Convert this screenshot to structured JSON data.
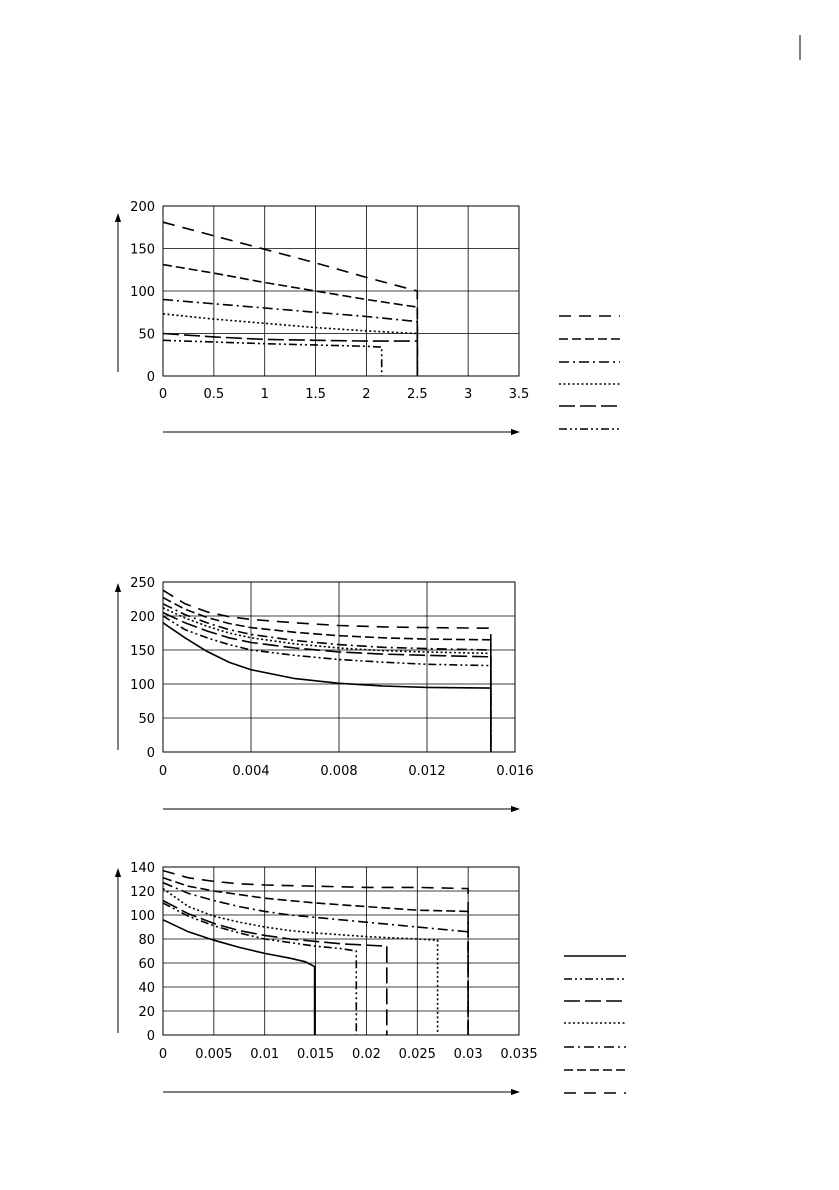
{
  "chart_data": [
    {
      "type": "line",
      "title": "",
      "xlabel": "",
      "ylabel": "",
      "xlim": [
        0,
        3.5
      ],
      "ylim": [
        0,
        200
      ],
      "xticks": [
        "0",
        "0.5",
        "1",
        "1.5",
        "2",
        "2.5",
        "3",
        "3.5"
      ],
      "yticks": [
        "0",
        "50",
        "100",
        "150",
        "200"
      ],
      "grid": true,
      "legend": "right",
      "series": [
        {
          "dash": "dashdotdot",
          "points": [
            [
              0,
              42
            ],
            [
              1,
              38
            ],
            [
              2,
              35
            ],
            [
              2.15,
              34
            ],
            [
              2.15,
              0
            ]
          ]
        },
        {
          "dash": "longdash",
          "points": [
            [
              0,
              50
            ],
            [
              0.5,
              46
            ],
            [
              1,
              43
            ],
            [
              1.5,
              42
            ],
            [
              2,
              41
            ],
            [
              2.5,
              41
            ],
            [
              2.5,
              0
            ]
          ]
        },
        {
          "dash": "dotted",
          "points": [
            [
              0,
              73
            ],
            [
              0.5,
              67
            ],
            [
              1,
              62
            ],
            [
              1.5,
              57
            ],
            [
              2,
              53
            ],
            [
              2.5,
              50
            ],
            [
              2.5,
              0
            ]
          ]
        },
        {
          "dash": "dashdot",
          "points": [
            [
              0,
              90
            ],
            [
              0.5,
              85
            ],
            [
              1,
              80
            ],
            [
              1.5,
              75
            ],
            [
              2,
              70
            ],
            [
              2.5,
              64
            ],
            [
              2.5,
              0
            ]
          ]
        },
        {
          "dash": "dash",
          "points": [
            [
              0,
              131
            ],
            [
              0.5,
              121
            ],
            [
              1,
              110
            ],
            [
              1.5,
              100
            ],
            [
              2,
              90
            ],
            [
              2.5,
              81
            ],
            [
              2.5,
              0
            ]
          ]
        },
        {
          "dash": "longspacedash",
          "points": [
            [
              0,
              181
            ],
            [
              0.5,
              165
            ],
            [
              1,
              149
            ],
            [
              1.5,
              133
            ],
            [
              2,
              116
            ],
            [
              2.5,
              100
            ],
            [
              2.5,
              0
            ]
          ]
        }
      ]
    },
    {
      "type": "line",
      "title": "",
      "xlabel": "",
      "ylabel": "",
      "xlim": [
        0,
        0.016
      ],
      "ylim": [
        0,
        250
      ],
      "xticks": [
        "0",
        "0.004",
        "0.008",
        "0.012",
        "0.016"
      ],
      "yticks": [
        "0",
        "50",
        "100",
        "150",
        "200",
        "250"
      ],
      "grid": true,
      "legend": "none",
      "series": [
        {
          "dash": "solid",
          "points": [
            [
              0,
              190
            ],
            [
              0.001,
              168
            ],
            [
              0.002,
              148
            ],
            [
              0.003,
              132
            ],
            [
              0.004,
              121
            ],
            [
              0.006,
              108
            ],
            [
              0.008,
              101
            ],
            [
              0.01,
              97
            ],
            [
              0.012,
              95
            ],
            [
              0.0149,
              94
            ],
            [
              0.0149,
              0
            ]
          ]
        },
        {
          "dash": "dashdotdot",
          "points": [
            [
              0,
              200
            ],
            [
              0.001,
              180
            ],
            [
              0.002,
              168
            ],
            [
              0.003,
              158
            ],
            [
              0.004,
              150
            ],
            [
              0.006,
              142
            ],
            [
              0.008,
              136
            ],
            [
              0.01,
              132
            ],
            [
              0.012,
              129
            ],
            [
              0.0149,
              127
            ],
            [
              0.0149,
              0
            ]
          ]
        },
        {
          "dash": "longdash",
          "points": [
            [
              0,
              205
            ],
            [
              0.001,
              190
            ],
            [
              0.002,
              178
            ],
            [
              0.003,
              168
            ],
            [
              0.004,
              161
            ],
            [
              0.006,
              153
            ],
            [
              0.008,
              147
            ],
            [
              0.01,
              144
            ],
            [
              0.012,
              142
            ],
            [
              0.0149,
              140
            ],
            [
              0.0149,
              0
            ]
          ]
        },
        {
          "dash": "dotted",
          "points": [
            [
              0,
              212
            ],
            [
              0.001,
              197
            ],
            [
              0.002,
              185
            ],
            [
              0.003,
              175
            ],
            [
              0.004,
              168
            ],
            [
              0.006,
              159
            ],
            [
              0.008,
              153
            ],
            [
              0.01,
              149
            ],
            [
              0.012,
              147
            ],
            [
              0.0149,
              145
            ],
            [
              0.0149,
              0
            ]
          ]
        },
        {
          "dash": "dashdot",
          "points": [
            [
              0,
              218
            ],
            [
              0.001,
              202
            ],
            [
              0.002,
              190
            ],
            [
              0.003,
              180
            ],
            [
              0.004,
              173
            ],
            [
              0.006,
              164
            ],
            [
              0.008,
              158
            ],
            [
              0.01,
              154
            ],
            [
              0.012,
              152
            ],
            [
              0.0149,
              150
            ],
            [
              0.0149,
              0
            ]
          ]
        },
        {
          "dash": "dash",
          "points": [
            [
              0,
              227
            ],
            [
              0.001,
              210
            ],
            [
              0.002,
              198
            ],
            [
              0.003,
              189
            ],
            [
              0.004,
              183
            ],
            [
              0.006,
              176
            ],
            [
              0.008,
              171
            ],
            [
              0.01,
              168
            ],
            [
              0.012,
              166
            ],
            [
              0.0149,
              165
            ],
            [
              0.0149,
              0
            ]
          ]
        },
        {
          "dash": "longspacedash",
          "points": [
            [
              0,
              238
            ],
            [
              0.001,
              218
            ],
            [
              0.002,
              206
            ],
            [
              0.003,
              199
            ],
            [
              0.004,
              195
            ],
            [
              0.006,
              190
            ],
            [
              0.008,
              186
            ],
            [
              0.01,
              184
            ],
            [
              0.012,
              183
            ],
            [
              0.0149,
              182
            ],
            [
              0.0149,
              0
            ]
          ]
        }
      ]
    },
    {
      "type": "line",
      "title": "",
      "xlabel": "",
      "ylabel": "",
      "xlim": [
        0,
        0.035
      ],
      "ylim": [
        0,
        140
      ],
      "xticks": [
        "0",
        "0.005",
        "0.01",
        "0.015",
        "0.02",
        "0.025",
        "0.03",
        "0.035"
      ],
      "yticks": [
        "0",
        "20",
        "40",
        "60",
        "80",
        "100",
        "120",
        "140"
      ],
      "grid": true,
      "legend": "right",
      "series": [
        {
          "dash": "solid",
          "points": [
            [
              0,
              96
            ],
            [
              0.0025,
              86
            ],
            [
              0.005,
              79
            ],
            [
              0.0075,
              73
            ],
            [
              0.01,
              68
            ],
            [
              0.0125,
              64
            ],
            [
              0.014,
              61
            ],
            [
              0.0149,
              57
            ],
            [
              0.0149,
              0
            ]
          ]
        },
        {
          "dash": "dashdotdot",
          "points": [
            [
              0,
              110
            ],
            [
              0.0025,
              99
            ],
            [
              0.005,
              91
            ],
            [
              0.0075,
              85
            ],
            [
              0.01,
              80
            ],
            [
              0.0125,
              77
            ],
            [
              0.015,
              74
            ],
            [
              0.0175,
              72
            ],
            [
              0.019,
              70
            ],
            [
              0.019,
              0
            ]
          ]
        },
        {
          "dash": "longdash",
          "points": [
            [
              0,
              112
            ],
            [
              0.0025,
              101
            ],
            [
              0.005,
              93
            ],
            [
              0.0075,
              87
            ],
            [
              0.01,
              83
            ],
            [
              0.0125,
              80
            ],
            [
              0.015,
              78
            ],
            [
              0.0175,
              76
            ],
            [
              0.022,
              74
            ],
            [
              0.022,
              0
            ]
          ]
        },
        {
          "dash": "dotted",
          "points": [
            [
              0,
              122
            ],
            [
              0.0025,
              107
            ],
            [
              0.005,
              99
            ],
            [
              0.0075,
              94
            ],
            [
              0.01,
              90
            ],
            [
              0.0125,
              87
            ],
            [
              0.015,
              85
            ],
            [
              0.02,
              82
            ],
            [
              0.025,
              80
            ],
            [
              0.027,
              79
            ],
            [
              0.027,
              0
            ]
          ]
        },
        {
          "dash": "dashdot",
          "points": [
            [
              0,
              127
            ],
            [
              0.0025,
              118
            ],
            [
              0.005,
              112
            ],
            [
              0.0075,
              107
            ],
            [
              0.01,
              103
            ],
            [
              0.0125,
              100
            ],
            [
              0.015,
              98
            ],
            [
              0.02,
              94
            ],
            [
              0.025,
              90
            ],
            [
              0.03,
              86
            ],
            [
              0.03,
              0
            ]
          ]
        },
        {
          "dash": "dash",
          "points": [
            [
              0,
              131
            ],
            [
              0.0025,
              124
            ],
            [
              0.005,
              120
            ],
            [
              0.0075,
              117
            ],
            [
              0.01,
              114
            ],
            [
              0.0125,
              112
            ],
            [
              0.015,
              110
            ],
            [
              0.02,
              107
            ],
            [
              0.025,
              104
            ],
            [
              0.03,
              103
            ],
            [
              0.03,
              0
            ]
          ]
        },
        {
          "dash": "longspacedash",
          "points": [
            [
              0,
              137
            ],
            [
              0.0025,
              131
            ],
            [
              0.005,
              128
            ],
            [
              0.0075,
              126
            ],
            [
              0.01,
              125
            ],
            [
              0.015,
              124
            ],
            [
              0.02,
              123
            ],
            [
              0.025,
              123
            ],
            [
              0.03,
              122
            ],
            [
              0.03,
              0
            ]
          ]
        }
      ]
    }
  ]
}
